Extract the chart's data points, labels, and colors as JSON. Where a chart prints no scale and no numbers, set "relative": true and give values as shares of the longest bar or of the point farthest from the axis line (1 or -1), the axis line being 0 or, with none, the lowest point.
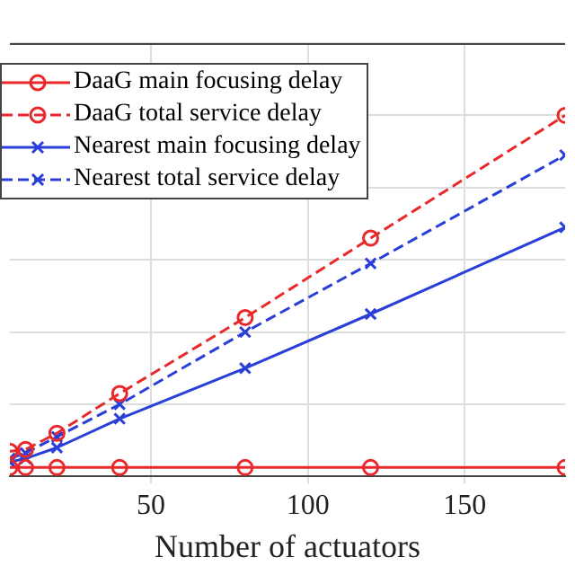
{
  "chart_data": {
    "type": "line",
    "xlabel": "Number of actuators",
    "relative": true,
    "x": [
      5,
      10,
      20,
      40,
      80,
      120,
      182
    ],
    "xlim": [
      5,
      182
    ],
    "xticks": [
      50,
      100,
      150
    ],
    "grid": true,
    "legend": "top left",
    "series": [
      {
        "name": "DaaG main focusing delay",
        "color": "#e8282a",
        "marker": "circle",
        "line_style": "solid",
        "values": [
          0.025,
          0.025,
          0.025,
          0.025,
          0.025,
          0.025,
          0.025
        ]
      },
      {
        "name": "DaaG total service delay",
        "color": "#e8282a",
        "marker": "circle",
        "line_style": "dashed",
        "values": [
          0.07,
          0.075,
          0.12,
          0.23,
          0.44,
          0.66,
          1
        ]
      },
      {
        "name": "Nearest main focusing delay",
        "color": "#2a3fd8",
        "marker": "cross",
        "line_style": "solid",
        "values": [
          0.04,
          0.05,
          0.08,
          0.16,
          0.3,
          0.45,
          0.69
        ]
      },
      {
        "name": "Nearest total service delay",
        "color": "#2a3fd8",
        "marker": "cross",
        "line_style": "dashed",
        "values": [
          0.05,
          0.065,
          0.11,
          0.2,
          0.4,
          0.59,
          0.89
        ]
      }
    ]
  }
}
